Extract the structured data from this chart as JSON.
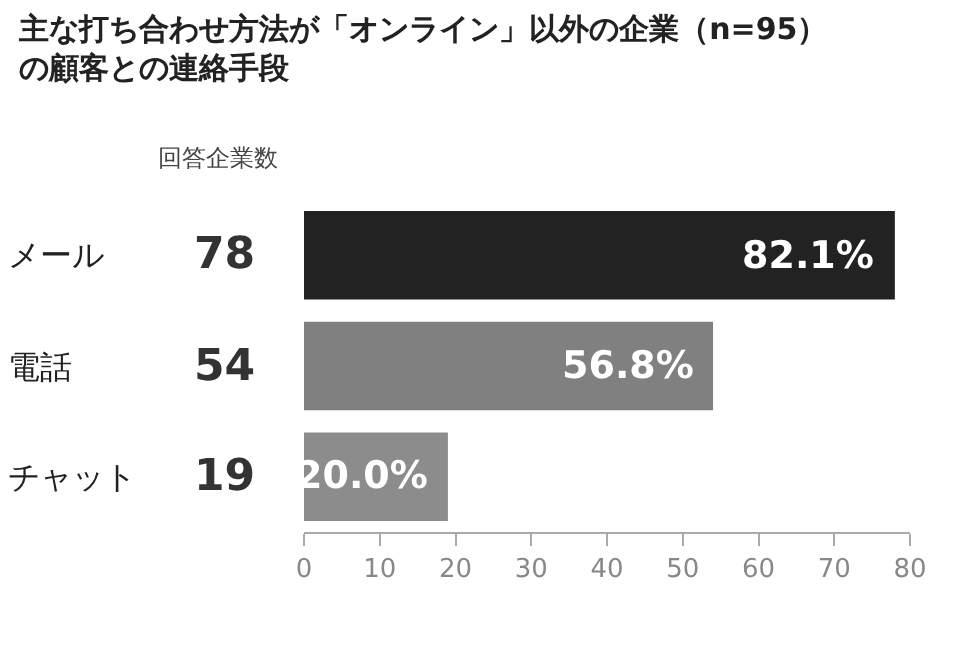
{
  "chart_data": {
    "type": "bar",
    "orientation": "horizontal",
    "title": "主な打ち合わせ方法が「オンライン」以外の企業（n=95）",
    "subtitle": "の顧客との連絡手段",
    "categories": [
      "メール",
      "電話",
      "チャット"
    ],
    "values": [
      78,
      54,
      19
    ],
    "colors": [
      "#222222",
      "#808080",
      "#8c8c8c"
    ],
    "data_labels": true,
    "annotations": [
      "回答企業数",
      {
        "text": "82.1%",
        "x": 78,
        "y": "メール"
      },
      {
        "text": "56.8%",
        "x": 54,
        "y": "電話"
      },
      {
        "text": "20.0%",
        "x": 19,
        "y": "チャット"
      }
    ],
    "xlim": [
      0,
      80
    ],
    "xticks": [
      0,
      10,
      20,
      30,
      40,
      50,
      60,
      70,
      80
    ],
    "grid": false,
    "legend": false
  }
}
